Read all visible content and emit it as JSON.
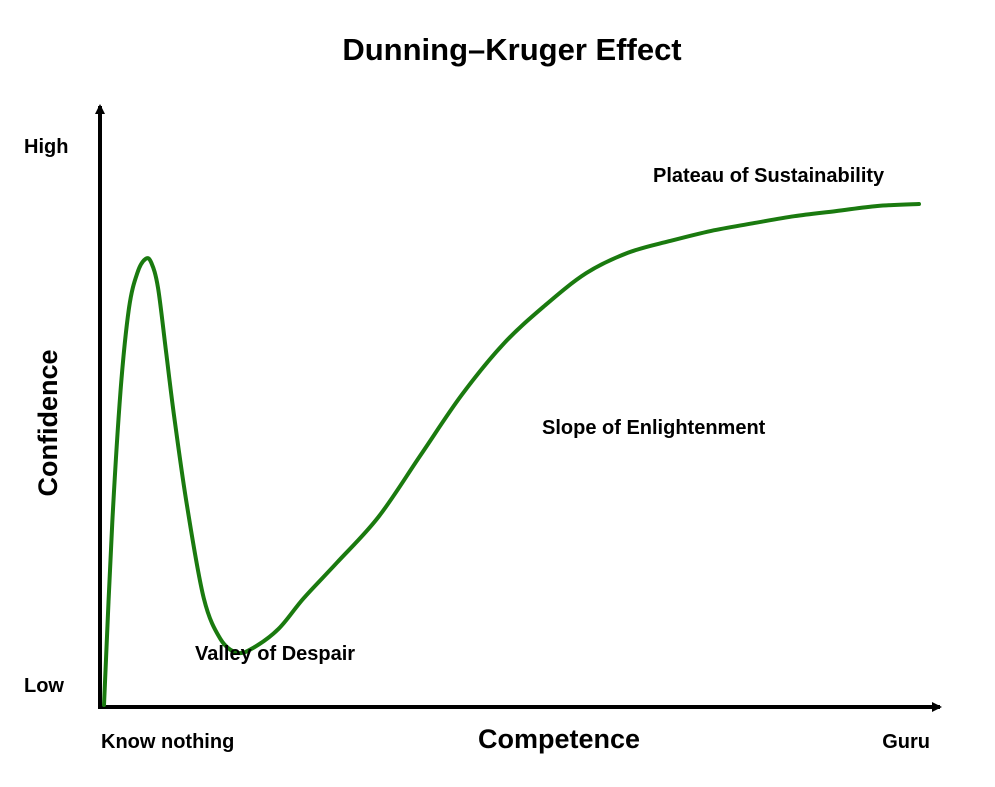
{
  "chart_data": {
    "type": "line",
    "title": "Dunning–Kruger Effect",
    "xlabel": "Competence",
    "ylabel": "Confidence",
    "x_tick_labels": [
      "Know nothing",
      "Guru"
    ],
    "y_tick_labels": [
      "Low",
      "High"
    ],
    "xlim": [
      0,
      100
    ],
    "ylim": [
      0,
      100
    ],
    "grid": false,
    "series": [
      {
        "color": "#1a7a0f",
        "x": [
          0,
          1,
          2,
          3,
          4,
          5,
          5.7,
          6.5,
          7.5,
          8.5,
          10,
          12,
          14,
          16,
          18,
          21,
          24,
          28,
          33,
          38,
          43,
          48,
          53,
          58,
          63,
          68,
          73,
          78,
          83,
          88,
          93,
          98
        ],
        "y": [
          0,
          36,
          62,
          78,
          85,
          87.8,
          87,
          82,
          69,
          56,
          39,
          21,
          13,
          10.3,
          11.3,
          15,
          21,
          28,
          37,
          49,
          61,
          71,
          78.6,
          85,
          89,
          91.3,
          93.3,
          94.8,
          96.2,
          97.2,
          98.2,
          98.6
        ]
      }
    ],
    "annotations": [
      "Plateau of Sustainability",
      "Slope of Enlightenment",
      "Valley of Despair"
    ]
  }
}
